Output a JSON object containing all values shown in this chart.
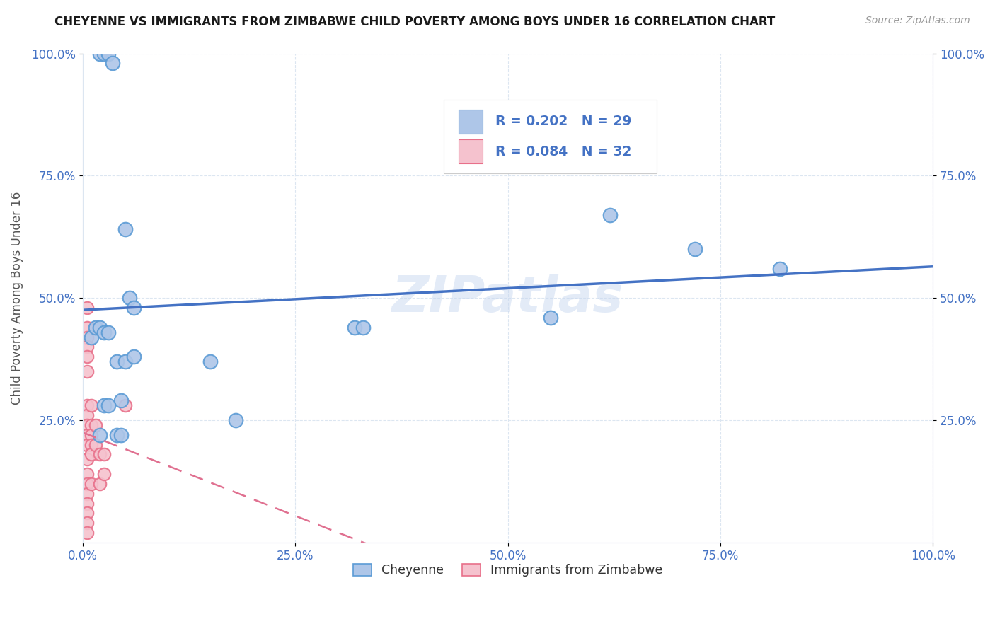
{
  "title": "CHEYENNE VS IMMIGRANTS FROM ZIMBABWE CHILD POVERTY AMONG BOYS UNDER 16 CORRELATION CHART",
  "source": "Source: ZipAtlas.com",
  "ylabel": "Child Poverty Among Boys Under 16",
  "xlim": [
    0,
    100
  ],
  "ylim": [
    0,
    100
  ],
  "xtick_labels": [
    "0.0%",
    "25.0%",
    "50.0%",
    "75.0%",
    "100.0%"
  ],
  "xtick_positions": [
    0,
    25,
    50,
    75,
    100
  ],
  "ytick_labels": [
    "100.0%",
    "75.0%",
    "50.0%",
    "25.0%"
  ],
  "ytick_positions": [
    100,
    75,
    50,
    25
  ],
  "cheyenne_color": "#aec6e8",
  "cheyenne_edge_color": "#5b9bd5",
  "zimbabwe_color": "#f5c2ce",
  "zimbabwe_edge_color": "#e8708a",
  "cheyenne_line_color": "#4472c4",
  "zimbabwe_line_color": "#e07090",
  "grid_color": "#dce6f1",
  "tick_color": "#4472c4",
  "background_color": "#ffffff",
  "legend_cheyenne_label": "Cheyenne",
  "legend_zimbabwe_label": "Immigrants from Zimbabwe",
  "R_cheyenne": "R = 0.202",
  "N_cheyenne": "N = 29",
  "R_zimbabwe": "R = 0.084",
  "N_zimbabwe": "N = 32",
  "watermark": "ZIPatlas",
  "cheyenne_x": [
    2.0,
    2.5,
    3.0,
    3.5,
    5.0,
    5.5,
    6.0,
    1.0,
    1.5,
    2.0,
    2.5,
    3.0,
    4.0,
    4.5,
    15.0,
    18.0,
    32.0,
    33.0,
    55.0,
    62.0,
    72.0,
    82.0,
    2.0,
    2.5,
    3.0,
    4.0,
    4.5,
    5.0,
    6.0
  ],
  "cheyenne_y": [
    100.0,
    100.0,
    100.0,
    98.0,
    64.0,
    50.0,
    48.0,
    42.0,
    44.0,
    44.0,
    43.0,
    43.0,
    37.0,
    29.0,
    37.0,
    25.0,
    44.0,
    44.0,
    46.0,
    67.0,
    60.0,
    56.0,
    22.0,
    28.0,
    28.0,
    22.0,
    22.0,
    37.0,
    38.0
  ],
  "zimbabwe_x": [
    0.5,
    0.5,
    0.5,
    0.5,
    0.5,
    0.5,
    0.5,
    0.5,
    0.5,
    0.5,
    0.5,
    0.5,
    0.5,
    0.5,
    0.5,
    0.5,
    0.5,
    0.5,
    0.5,
    1.0,
    1.0,
    1.0,
    1.0,
    1.0,
    1.0,
    1.5,
    1.5,
    2.0,
    2.0,
    2.5,
    2.5,
    5.0
  ],
  "zimbabwe_y": [
    48.0,
    44.0,
    42.0,
    40.0,
    38.0,
    35.0,
    28.0,
    26.0,
    24.0,
    22.0,
    20.0,
    17.0,
    14.0,
    12.0,
    10.0,
    8.0,
    6.0,
    4.0,
    2.0,
    28.0,
    24.0,
    22.0,
    20.0,
    18.0,
    12.0,
    24.0,
    20.0,
    18.0,
    12.0,
    18.0,
    14.0,
    28.0
  ]
}
